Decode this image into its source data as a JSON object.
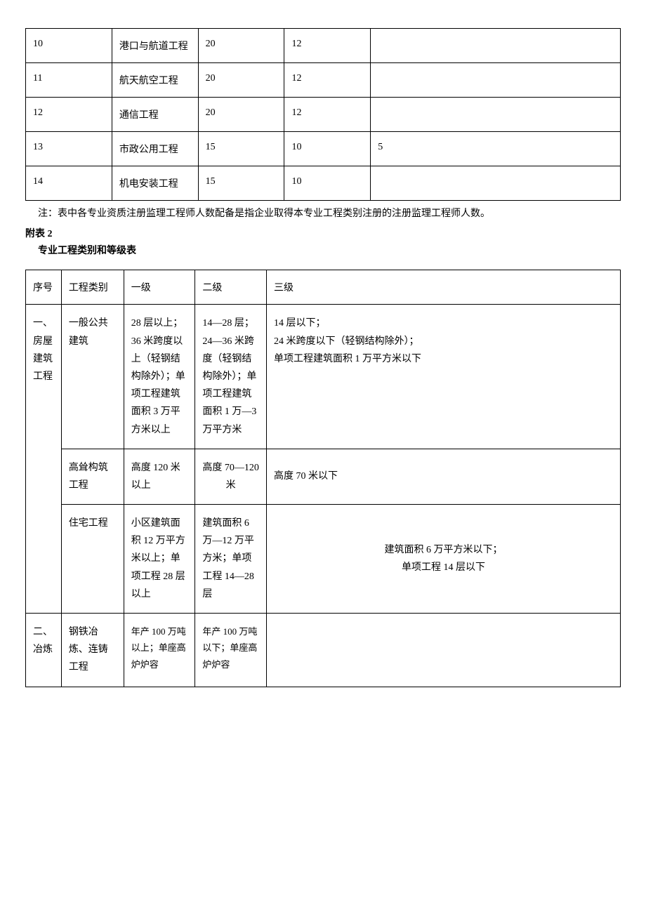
{
  "table1": {
    "rows": [
      {
        "c1": "10",
        "c2": "港口与航道工程",
        "c3": "20",
        "c4": "12",
        "c5": ""
      },
      {
        "c1": "11",
        "c2": "航天航空工程",
        "c3": "20",
        "c4": "12",
        "c5": ""
      },
      {
        "c1": "12",
        "c2": "通信工程",
        "c3": "20",
        "c4": "12",
        "c5": ""
      },
      {
        "c1": "13",
        "c2": "市政公用工程",
        "c3": "15",
        "c4": "10",
        "c5": "5"
      },
      {
        "c1": "14",
        "c2": "机电安装工程",
        "c3": "15",
        "c4": "10",
        "c5": ""
      }
    ]
  },
  "note_text": "注：表中各专业资质注册监理工程师人数配备是指企业取得本专业工程类别注册的注册监理工程师人数。",
  "appendix_label": "附表 2",
  "table2_title": "专业工程类别和等级表",
  "table2": {
    "headers": {
      "h1": "序号",
      "h2": "工程类别",
      "h3": "一级",
      "h4": "二级",
      "h5": "三级"
    },
    "row1": {
      "c1": "一、房屋建筑工程",
      "c2": "一般公共建筑",
      "c3": "28 层以上；36 米跨度以上（轻钢结构除外）；单项工程建筑面积 3 万平方米以上",
      "c4": "14—28 层；24—36 米跨度（轻钢结构除外）；单项工程建筑面积 1 万—3 万平方米",
      "c5": "14 层以下；\n24 米跨度以下（轻钢结构除外）；\n单项工程建筑面积 1 万平方米以下"
    },
    "row2": {
      "c2": "高耸构筑工程",
      "c3": "高度 120 米以上",
      "c4": "高度 70—120 米",
      "c5": "高度 70 米以下"
    },
    "row3": {
      "c2": "住宅工程",
      "c3": "小区建筑面积 12 万平方米以上；单项工程 28 层以上",
      "c4": "建筑面积 6 万—12 万平方米；单项工程 14—28 层",
      "c5_line1": "建筑面积 6 万平方米以下；",
      "c5_line2": "单项工程 14 层以下"
    },
    "row4": {
      "c1": "二、冶炼",
      "c2": "钢铁冶炼、连铸工程",
      "c3": "年产 100 万吨以上；单座高炉炉容",
      "c4": "年产 100 万吨以下；单座高炉炉容",
      "c5": ""
    }
  }
}
